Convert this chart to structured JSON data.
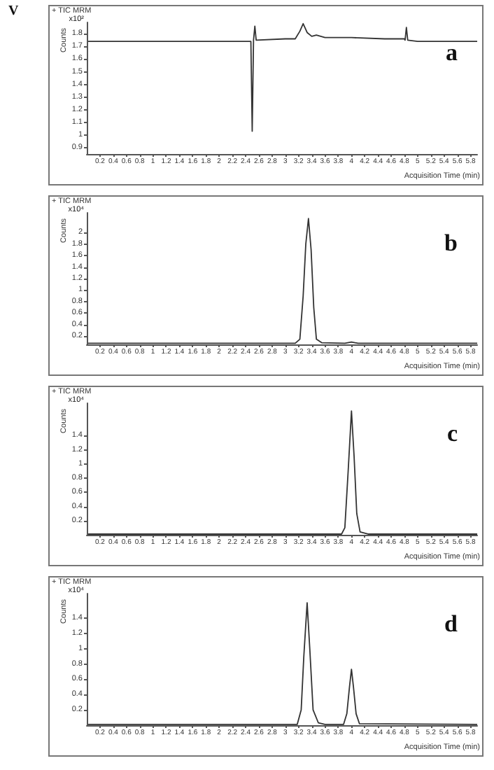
{
  "chart_data": [
    {
      "type": "line",
      "title": "+ TIC MRM",
      "xlabel": "Acquisition Time (min)",
      "ylabel": "Counts",
      "annotations": [
        "x10²",
        "a",
        "V"
      ],
      "xlim": [
        0,
        5.9
      ],
      "ylim": [
        0.85,
        1.89
      ],
      "xticks": [
        0.2,
        0.4,
        0.6,
        0.8,
        1,
        1.2,
        1.4,
        1.6,
        1.8,
        2,
        2.2,
        2.4,
        2.6,
        2.8,
        3,
        3.2,
        3.4,
        3.6,
        3.8,
        4,
        4.2,
        4.4,
        4.6,
        4.8,
        5,
        5.2,
        5.4,
        5.6,
        5.8
      ],
      "yticks": [
        0.9,
        1,
        1.1,
        1.2,
        1.3,
        1.4,
        1.5,
        1.6,
        1.7,
        1.8
      ],
      "marker": "none",
      "line_style": "solid",
      "series": [
        {
          "color": "#333333",
          "x": [
            0.02,
            1,
            2,
            2.48,
            2.5,
            2.52,
            2.54,
            2.56,
            3,
            3.15,
            3.22,
            3.27,
            3.33,
            3.4,
            3.47,
            3.6,
            4,
            4.5,
            4.8,
            4.81,
            4.83,
            4.85,
            5,
            5.9
          ],
          "values": [
            1.74,
            1.74,
            1.74,
            1.74,
            1.03,
            1.75,
            1.86,
            1.75,
            1.76,
            1.76,
            1.82,
            1.88,
            1.81,
            1.78,
            1.79,
            1.77,
            1.77,
            1.76,
            1.76,
            1.75,
            1.85,
            1.75,
            1.74,
            1.74
          ]
        }
      ]
    },
    {
      "type": "line",
      "title": "+ TIC MRM",
      "xlabel": "Acquisition Time (min)",
      "ylabel": "Counts",
      "annotations": [
        "x10⁴",
        "b"
      ],
      "xlim": [
        0,
        5.9
      ],
      "ylim": [
        0.06,
        2.34
      ],
      "xticks": [
        0.2,
        0.4,
        0.6,
        0.8,
        1,
        1.2,
        1.4,
        1.6,
        1.8,
        2,
        2.2,
        2.4,
        2.6,
        2.8,
        3,
        3.2,
        3.4,
        3.6,
        3.8,
        4,
        4.2,
        4.4,
        4.6,
        4.8,
        5,
        5.2,
        5.4,
        5.6,
        5.8
      ],
      "yticks": [
        0.2,
        0.4,
        0.6,
        0.8,
        1,
        1.2,
        1.4,
        1.6,
        1.8,
        2
      ],
      "marker": "none",
      "line_style": "solid",
      "series": [
        {
          "color": "#333333",
          "x": [
            0.02,
            3.15,
            3.22,
            3.27,
            3.31,
            3.35,
            3.39,
            3.43,
            3.47,
            3.55,
            3.9,
            4,
            4.1,
            5.9
          ],
          "values": [
            0.08,
            0.08,
            0.15,
            0.9,
            1.8,
            2.24,
            1.7,
            0.7,
            0.15,
            0.09,
            0.08,
            0.1,
            0.08,
            0.08
          ]
        }
      ]
    },
    {
      "type": "line",
      "title": "+ TIC MRM",
      "xlabel": "Acquisition Time (min)",
      "ylabel": "Counts",
      "annotations": [
        "x10⁴",
        "c"
      ],
      "xlim": [
        0,
        5.9
      ],
      "ylim": [
        0,
        1.86
      ],
      "xticks": [
        0.2,
        0.4,
        0.6,
        0.8,
        1,
        1.2,
        1.4,
        1.6,
        1.8,
        2,
        2.2,
        2.4,
        2.6,
        2.8,
        3,
        3.2,
        3.4,
        3.6,
        3.8,
        4,
        4.2,
        4.4,
        4.6,
        4.8,
        5,
        5.2,
        5.4,
        5.6,
        5.8
      ],
      "yticks": [
        0.2,
        0.4,
        0.6,
        0.8,
        1,
        1.2,
        1.4
      ],
      "marker": "none",
      "line_style": "solid",
      "series": [
        {
          "color": "#333333",
          "x": [
            0.02,
            3.85,
            3.9,
            3.95,
            4,
            4.04,
            4.08,
            4.13,
            4.25,
            5.9
          ],
          "values": [
            0.01,
            0.01,
            0.1,
            0.9,
            1.75,
            1.1,
            0.3,
            0.04,
            0.01,
            0.01
          ]
        }
      ]
    },
    {
      "type": "line",
      "title": "+ TIC MRM",
      "xlabel": "Acquisition Time (min)",
      "ylabel": "Counts",
      "annotations": [
        "x10⁴",
        "d"
      ],
      "xlim": [
        0,
        5.9
      ],
      "ylim": [
        0,
        1.72
      ],
      "xticks": [
        0.2,
        0.4,
        0.6,
        0.8,
        1,
        1.2,
        1.4,
        1.6,
        1.8,
        2,
        2.2,
        2.4,
        2.6,
        2.8,
        3,
        3.2,
        3.4,
        3.6,
        3.8,
        4,
        4.2,
        4.4,
        4.6,
        4.8,
        5,
        5.2,
        5.4,
        5.6,
        5.8
      ],
      "yticks": [
        0.2,
        0.4,
        0.6,
        0.8,
        1,
        1.2,
        1.4
      ],
      "marker": "none",
      "line_style": "solid",
      "series": [
        {
          "color": "#333333",
          "x": [
            0.02,
            3.18,
            3.24,
            3.28,
            3.33,
            3.37,
            3.42,
            3.5,
            3.6,
            3.88,
            3.93,
            3.97,
            4,
            4.03,
            4.07,
            4.12,
            5.9
          ],
          "values": [
            0.01,
            0.01,
            0.2,
            0.9,
            1.6,
            1.0,
            0.2,
            0.03,
            0.01,
            0.01,
            0.15,
            0.5,
            0.73,
            0.5,
            0.15,
            0.02,
            0.01
          ]
        }
      ]
    }
  ]
}
